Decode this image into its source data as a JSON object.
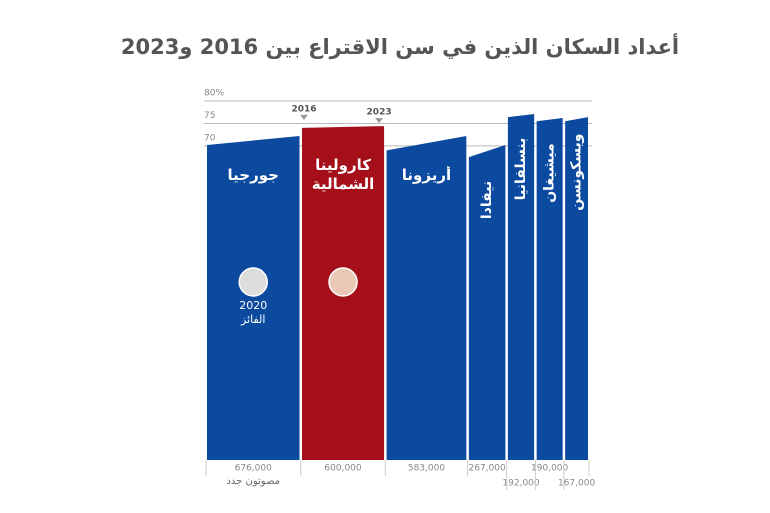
{
  "chart_data": {
    "type": "variable-width-area",
    "title": "أعداد السكان الذين في سن الاقتراع بين 2016 و2023",
    "categories": [
      "جورجيا",
      "كارولينا الشمالية",
      "أريزونا",
      "نيفادا",
      "بنسلفانيا",
      "ميشيغان",
      "ويسكونسن"
    ],
    "colors": [
      "#0b4a9e",
      "#a50f1a",
      "#0b4a9e",
      "#0b4a9e",
      "#0b4a9e",
      "#0b4a9e",
      "#0b4a9e"
    ],
    "series": [
      {
        "name": "2016",
        "values": [
          70.2,
          74.0,
          69.0,
          67.5,
          76.4,
          75.5,
          75.5
        ]
      },
      {
        "name": "2023",
        "values": [
          72.2,
          74.4,
          72.2,
          70.2,
          77.1,
          76.2,
          76.4
        ]
      }
    ],
    "new_voters": {
      "label": "مصوتون جدد",
      "values": [
        676000,
        600000,
        583000,
        267000,
        192000,
        190000,
        167000
      ],
      "value_labels": [
        "676,000",
        "600,000",
        "583,000",
        "267,000",
        "192,000",
        "190,000",
        "167,000"
      ]
    },
    "winner_year": "2020",
    "winner_label": "الفائز",
    "ylim": [
      0,
      80
    ],
    "yticks": [
      70,
      75,
      {
        "value": 80,
        "label": "80%"
      }
    ],
    "grid": true
  }
}
